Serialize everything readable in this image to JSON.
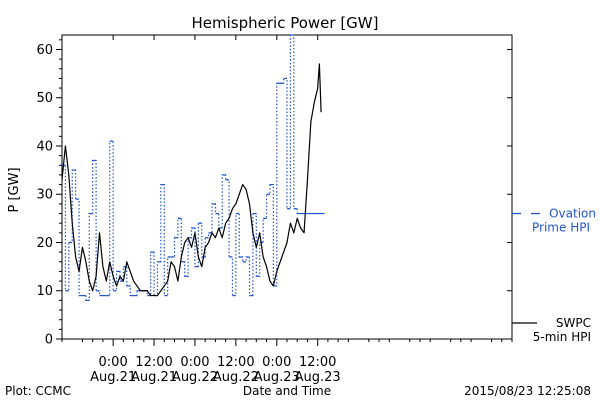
{
  "chart_data": {
    "type": "line",
    "title": "Hemispheric Power [GW]",
    "ylabel": "P [GW]",
    "xlabel": "Date and Time",
    "xlim": [
      -15,
      117
    ],
    "ylim": [
      0,
      63
    ],
    "x_ticks": [
      {
        "x": 0,
        "label": "0:00",
        "sublabel": "Aug.21"
      },
      {
        "x": 12,
        "label": "12:00",
        "sublabel": "Aug.21"
      },
      {
        "x": 24,
        "label": "0:00",
        "sublabel": "Aug.22"
      },
      {
        "x": 36,
        "label": "12:00",
        "sublabel": "Aug.22"
      },
      {
        "x": 48,
        "label": "0:00",
        "sublabel": "Aug.23"
      },
      {
        "x": 60,
        "label": "12:00",
        "sublabel": "Aug.23"
      }
    ],
    "y_ticks": [
      0,
      10,
      20,
      30,
      40,
      50,
      60
    ],
    "grid": false,
    "legend": "right",
    "series": [
      {
        "name": "SWPC 5-min HPI",
        "style": "solid",
        "color": "#000000",
        "legend_lines": [
          "SWPC",
          "5-min HPI"
        ],
        "x": [
          -15,
          -14,
          -13,
          -12,
          -11,
          -10,
          -9,
          -8,
          -7,
          -6,
          -5,
          -4,
          -3,
          -2,
          -1,
          0,
          1,
          2,
          3,
          4,
          5,
          6,
          7,
          8,
          9,
          10,
          11,
          12,
          13,
          14,
          15,
          16,
          17,
          18,
          19,
          20,
          21,
          22,
          23,
          24,
          25,
          26,
          27,
          28,
          29,
          30,
          31,
          32,
          33,
          34,
          35,
          36,
          37,
          38,
          39,
          40,
          41,
          42,
          43,
          44,
          45,
          46,
          47,
          48,
          49,
          50,
          51,
          52,
          53,
          54,
          55,
          56,
          57,
          58,
          59,
          60,
          60.5,
          61
        ],
        "y": [
          33,
          40,
          34,
          24,
          17,
          14,
          19,
          16,
          12,
          10,
          13,
          22,
          15,
          12,
          16,
          13,
          11,
          13,
          12,
          16,
          14,
          12,
          11,
          10,
          10,
          10,
          9,
          9,
          9,
          10,
          11,
          12,
          16,
          15,
          12,
          17,
          20,
          21,
          19,
          22,
          17,
          15,
          19,
          20,
          22,
          21,
          23,
          21,
          24,
          25,
          27,
          28,
          30,
          32,
          31,
          28,
          22,
          19,
          22,
          17,
          15,
          12,
          11,
          14,
          16,
          18,
          20,
          24,
          22,
          25,
          23,
          22,
          33,
          45,
          49,
          52,
          57,
          47
        ]
      },
      {
        "name": "Ovation Prime HPI",
        "style": "dotted-step",
        "color": "#2255cc",
        "legend_lines": [
          "Ovation",
          "Prime HPI"
        ],
        "x": [
          -15,
          -14,
          -13,
          -12,
          -11,
          -10,
          -9,
          -8,
          -7,
          -6,
          -5,
          -4,
          -3,
          -2,
          -1,
          0,
          1,
          2,
          3,
          4,
          5,
          6,
          7,
          8,
          9,
          10,
          11,
          12,
          13,
          14,
          15,
          16,
          17,
          18,
          19,
          20,
          21,
          22,
          23,
          24,
          25,
          26,
          27,
          28,
          29,
          30,
          31,
          32,
          33,
          34,
          35,
          36,
          37,
          38,
          39,
          40,
          41,
          42,
          43,
          44,
          45,
          46,
          47,
          48,
          49,
          50,
          51,
          52,
          53,
          54,
          55,
          56,
          57,
          58,
          59,
          60,
          61
        ],
        "y": [
          36,
          10,
          20,
          35,
          29,
          9,
          9,
          8,
          26,
          37,
          10,
          9,
          9,
          9,
          41,
          10,
          14,
          12,
          15,
          11,
          9,
          9,
          10,
          10,
          10,
          9,
          18,
          9,
          16,
          32,
          9,
          17,
          17,
          21,
          25,
          16,
          13,
          21,
          23,
          15,
          24,
          17,
          21,
          22,
          28,
          26,
          23,
          34,
          33,
          17,
          9,
          26,
          17,
          16,
          17,
          9,
          26,
          13,
          20,
          25,
          30,
          32,
          11,
          53,
          53,
          54,
          27,
          63,
          27,
          26,
          26,
          26,
          26,
          26,
          26,
          26,
          26
        ]
      }
    ],
    "footer": {
      "left": "Plot: CCMC",
      "right": "2015/08/23 12:25:08"
    }
  }
}
